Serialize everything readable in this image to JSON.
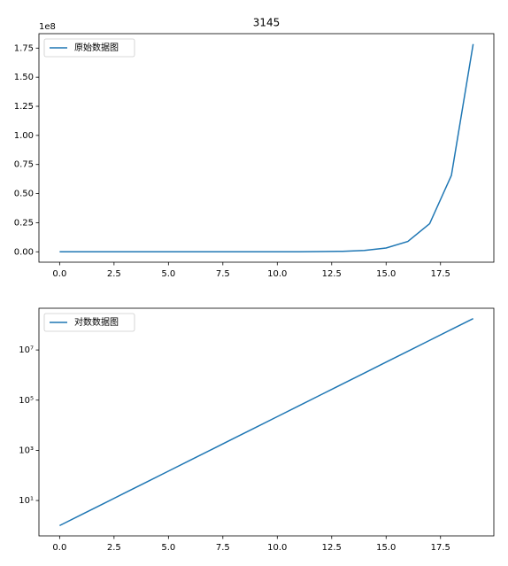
{
  "chart_data": [
    {
      "type": "line",
      "title": "3145",
      "y_offset_label": "1e8",
      "x": [
        0,
        1,
        2,
        3,
        4,
        5,
        6,
        7,
        8,
        9,
        10,
        11,
        12,
        13,
        14,
        15,
        16,
        17,
        18,
        19
      ],
      "series": [
        {
          "name": "原始数据图",
          "color": "#1f77b4",
          "values": [
            1,
            2.718,
            7.389,
            20.09,
            54.6,
            148.4,
            403.4,
            1096.6,
            2981,
            8103,
            22026,
            59874,
            162755,
            442413,
            1202604,
            3269017,
            8886111,
            24154953,
            65659969,
            178482301
          ]
        }
      ],
      "xlim": [
        -0.95,
        19.95
      ],
      "xticks": [
        {
          "value": 0,
          "label": "0.0"
        },
        {
          "value": 2.5,
          "label": "2.5"
        },
        {
          "value": 5,
          "label": "5.0"
        },
        {
          "value": 7.5,
          "label": "7.5"
        },
        {
          "value": 10,
          "label": "10.0"
        },
        {
          "value": 12.5,
          "label": "12.5"
        },
        {
          "value": 15,
          "label": "15.0"
        },
        {
          "value": 17.5,
          "label": "17.5"
        }
      ],
      "ylim": [
        -8924115,
        187406416
      ],
      "yticks": [
        {
          "value": 0,
          "label": "0.00"
        },
        {
          "value": 25000000,
          "label": "0.25"
        },
        {
          "value": 50000000,
          "label": "0.50"
        },
        {
          "value": 75000000,
          "label": "0.75"
        },
        {
          "value": 100000000,
          "label": "1.00"
        },
        {
          "value": 125000000,
          "label": "1.25"
        },
        {
          "value": 150000000,
          "label": "1.50"
        },
        {
          "value": 175000000,
          "label": "1.75"
        }
      ],
      "legend": "upper left"
    },
    {
      "type": "line",
      "yscale": "log",
      "x": [
        0,
        1,
        2,
        3,
        4,
        5,
        6,
        7,
        8,
        9,
        10,
        11,
        12,
        13,
        14,
        15,
        16,
        17,
        18,
        19
      ],
      "series": [
        {
          "name": "对数数据图",
          "color": "#1f77b4",
          "values": [
            1,
            2.718,
            7.389,
            20.09,
            54.6,
            148.4,
            403.4,
            1096.6,
            2981,
            8103,
            22026,
            59874,
            162755,
            442413,
            1202604,
            3269017,
            8886111,
            24154953,
            65659969,
            178482301
          ]
        }
      ],
      "xlim": [
        -0.95,
        19.95
      ],
      "xticks": [
        {
          "value": 0,
          "label": "0.0"
        },
        {
          "value": 2.5,
          "label": "2.5"
        },
        {
          "value": 5,
          "label": "5.0"
        },
        {
          "value": 7.5,
          "label": "7.5"
        },
        {
          "value": 10,
          "label": "10.0"
        },
        {
          "value": 12.5,
          "label": "12.5"
        },
        {
          "value": 15,
          "label": "15.0"
        },
        {
          "value": 17.5,
          "label": "17.5"
        }
      ],
      "ylim": [
        0.389,
        460000000
      ],
      "yticks": [
        {
          "value": 10,
          "label": "10¹"
        },
        {
          "value": 1000,
          "label": "10³"
        },
        {
          "value": 100000,
          "label": "10⁵"
        },
        {
          "value": 10000000,
          "label": "10⁷"
        }
      ],
      "legend": "upper left"
    }
  ]
}
